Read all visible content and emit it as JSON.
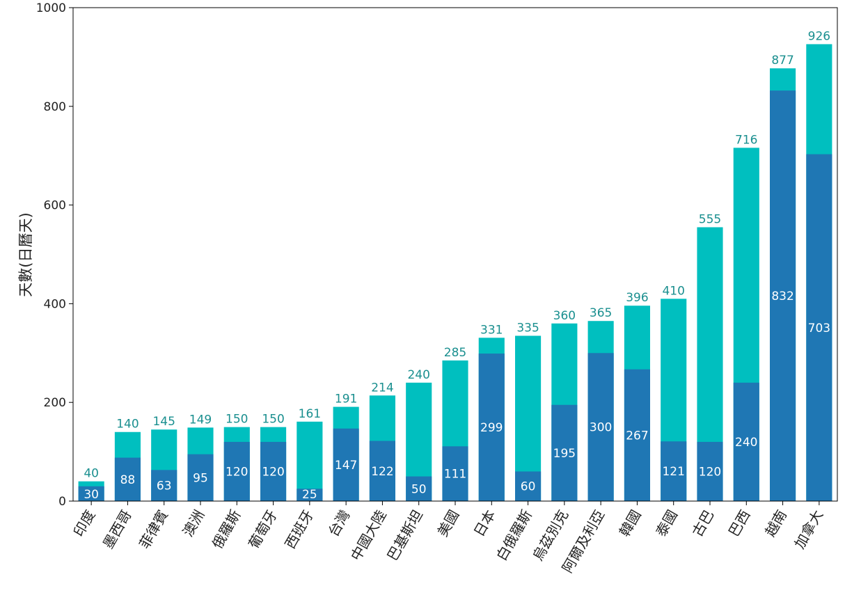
{
  "chart_data": {
    "type": "bar",
    "stacked": true,
    "title": "",
    "xlabel": "",
    "ylabel": "天數(日曆天)",
    "ylim": [
      0,
      1000
    ],
    "yticks": [
      0,
      200,
      400,
      600,
      800,
      1000
    ],
    "grid": false,
    "legend": "none",
    "categories": [
      "印度",
      "墨西哥",
      "菲律賓",
      "澳洲",
      "俄羅斯",
      "葡萄牙",
      "西班牙",
      "台灣",
      "中國大陸",
      "巴基斯坦",
      "美國",
      "日本",
      "白俄羅斯",
      "烏茲別克",
      "阿爾及利亞",
      "韓國",
      "泰國",
      "古巴",
      "巴西",
      "越南",
      "加拿大"
    ],
    "base_values": [
      30,
      88,
      63,
      95,
      120,
      120,
      25,
      147,
      122,
      50,
      111,
      299,
      60,
      195,
      300,
      267,
      121,
      120,
      240,
      832,
      703
    ],
    "total_values": [
      40,
      140,
      145,
      149,
      150,
      150,
      161,
      191,
      214,
      240,
      285,
      331,
      335,
      360,
      365,
      396,
      410,
      555,
      716,
      877,
      926
    ],
    "colors": {
      "base": "#1f77b4",
      "top": "#00bfbf",
      "total_label": "#1a8f8f",
      "inner_label": "#ffffff",
      "axis": "#000000"
    }
  }
}
